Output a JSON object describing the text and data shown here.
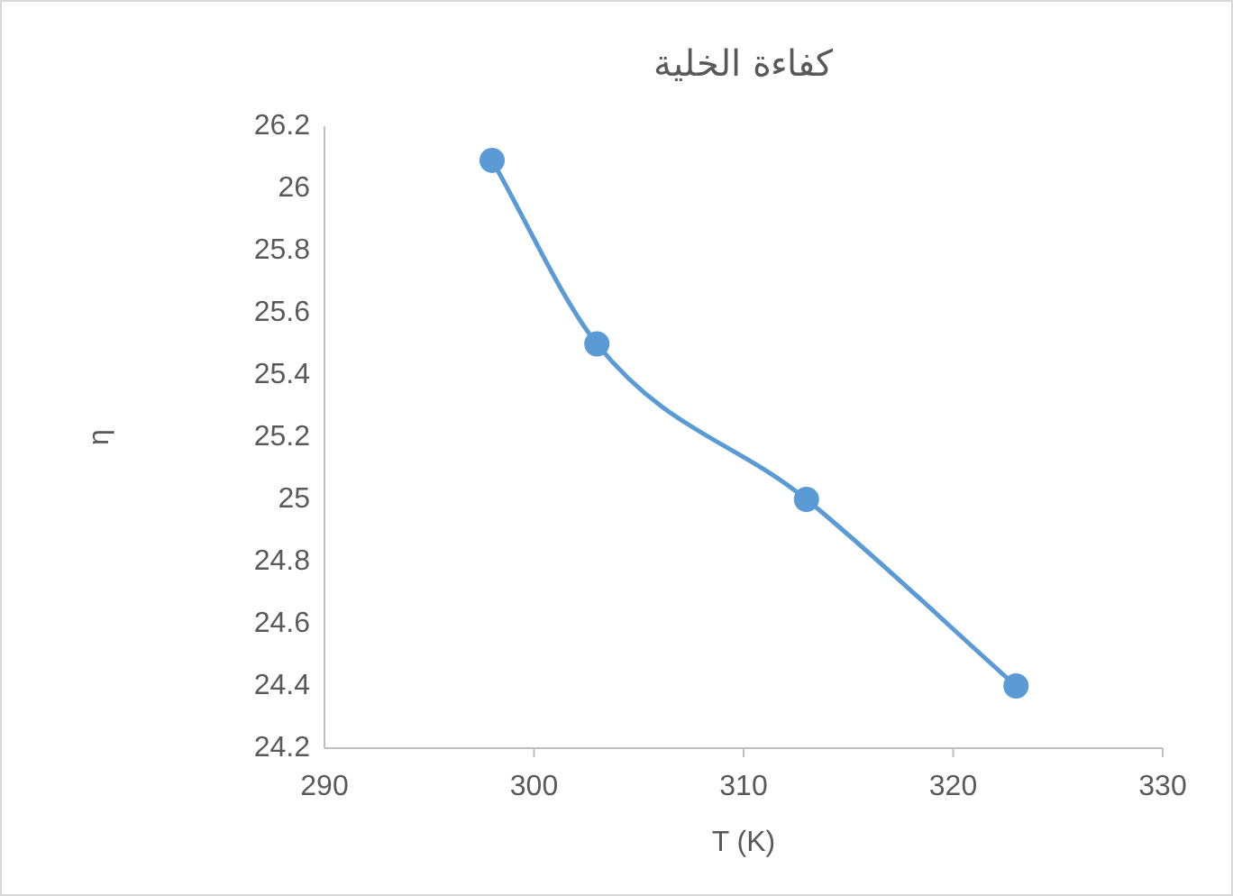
{
  "chart_data": {
    "type": "line",
    "title": "كفاءة الخلية",
    "xlabel": "T  (K)",
    "ylabel": "η",
    "x": [
      298,
      303,
      313,
      323
    ],
    "series": [
      {
        "color": "#5b9bd5",
        "values": [
          26.09,
          25.5,
          25.0,
          24.4
        ]
      }
    ],
    "xlim": [
      290,
      330
    ],
    "xticks": [
      290,
      300,
      310,
      320,
      330
    ],
    "ylim": [
      24.2,
      26.2
    ],
    "yticks": [
      24.2,
      24.4,
      24.6,
      24.8,
      25,
      25.2,
      25.4,
      25.6,
      25.8,
      26,
      26.2
    ],
    "marker": "circle",
    "line_style": "solid",
    "grid": false
  }
}
